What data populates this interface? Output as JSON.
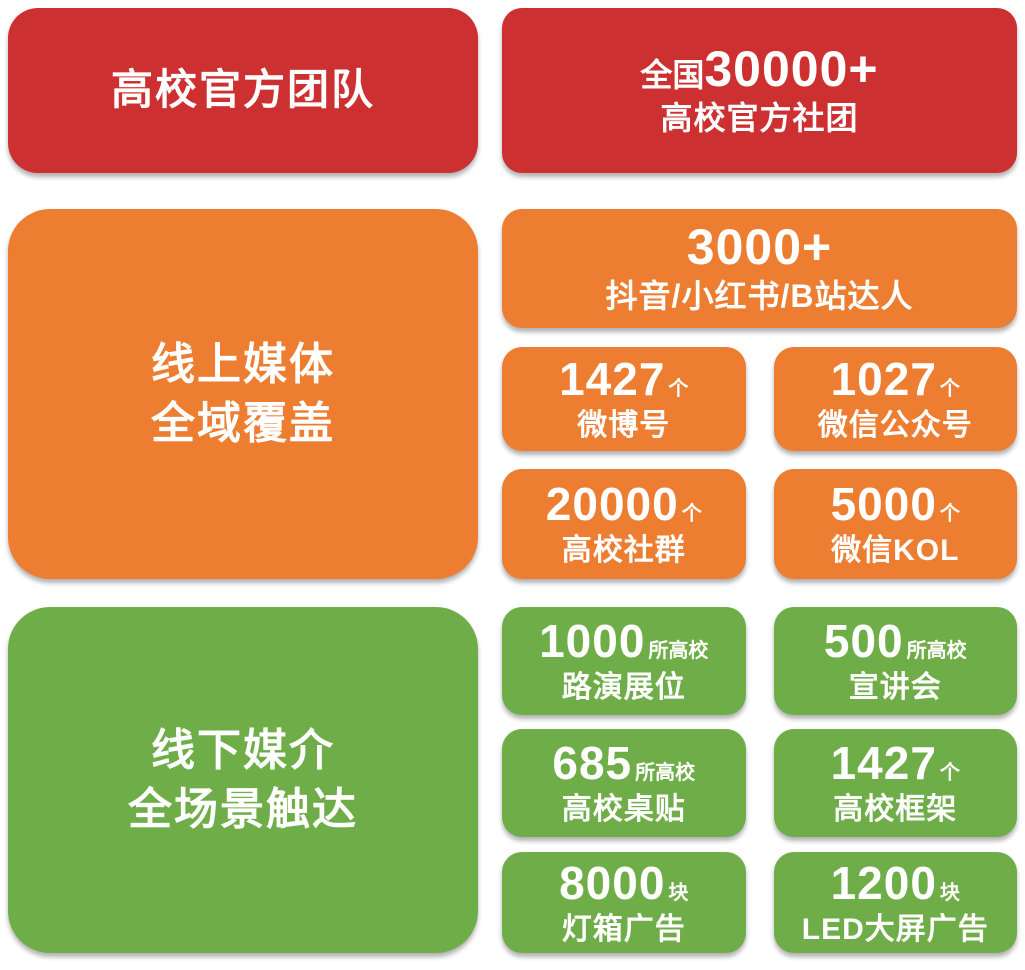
{
  "colors": {
    "red": "#cc3030",
    "orange": "#ec7d31",
    "green": "#6fad48",
    "text": "#ffffff",
    "background": "#ffffff"
  },
  "sections": [
    {
      "id": "official-teams",
      "headline": "高校官方团队",
      "cards": [
        {
          "prefix": "全国",
          "number": "30000+",
          "label": "高校官方社团"
        }
      ]
    },
    {
      "id": "online-media",
      "headline_lines": [
        "线上媒体",
        "全域覆盖"
      ],
      "cards": [
        {
          "number": "3000+",
          "label": "抖音/小红书/B站达人"
        },
        {
          "number": "1427",
          "unit": "个",
          "label": "微博号"
        },
        {
          "number": "1027",
          "unit": "个",
          "label": "微信公众号"
        },
        {
          "number": "20000",
          "unit": "个",
          "label": "高校社群"
        },
        {
          "number": "5000",
          "unit": "个",
          "label": "微信KOL"
        }
      ]
    },
    {
      "id": "offline-media",
      "headline_lines": [
        "线下媒介",
        "全场景触达"
      ],
      "cards": [
        {
          "number": "1000",
          "unit": "所高校",
          "label": "路演展位"
        },
        {
          "number": "500",
          "unit": "所高校",
          "label": "宣讲会"
        },
        {
          "number": "685",
          "unit": "所高校",
          "label": "高校桌贴"
        },
        {
          "number": "1427",
          "unit": "个",
          "label": "高校框架"
        },
        {
          "number": "8000",
          "unit": "块",
          "label": "灯箱广告"
        },
        {
          "number": "1200",
          "unit": "块",
          "label": "LED大屏广告"
        }
      ]
    }
  ]
}
